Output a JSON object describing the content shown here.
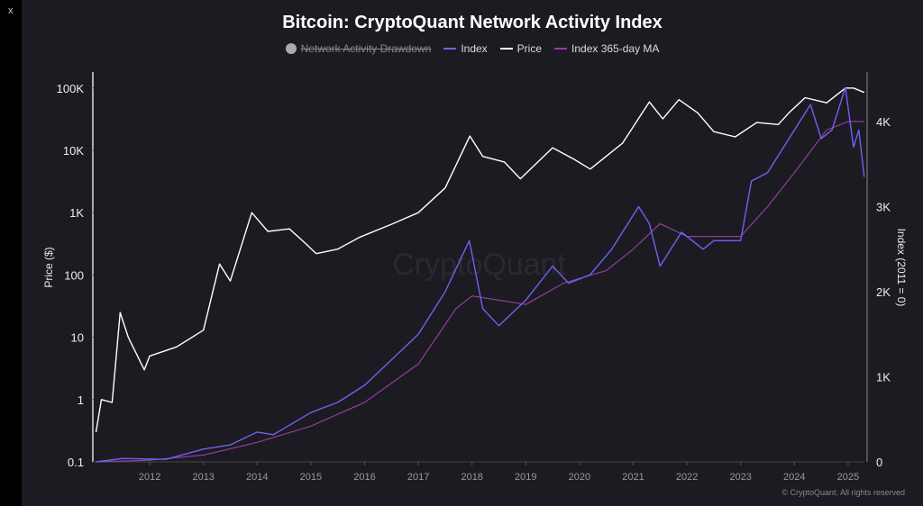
{
  "window": {
    "close_label": "x"
  },
  "footer": {
    "copyright": "© CryptoQuant. All rights reserved"
  },
  "chart_data": {
    "type": "line",
    "title": "Bitcoin: CryptoQuant Network Activity Index",
    "watermark": "CryptoQuant",
    "legend": [
      {
        "name": "Network Activity Drawdown",
        "color": "#aaaaaa",
        "hidden": true
      },
      {
        "name": "Index",
        "color": "#6c63f0"
      },
      {
        "name": "Price",
        "color": "#ffffff"
      },
      {
        "name": "Index 365-day MA",
        "color": "#8e3f9e"
      }
    ],
    "legend_placement": "top-center",
    "ylabel_left": "Price ($)",
    "ylabel_right": "Index (2011 = 0)",
    "x_ticks": [
      "2012",
      "2013",
      "2014",
      "2015",
      "2016",
      "2017",
      "2018",
      "2019",
      "2020",
      "2021",
      "2022",
      "2023",
      "2024",
      "2025"
    ],
    "x_range": [
      2011.0,
      2025.3
    ],
    "y_left_scale": "log",
    "y_left_ticks": [
      {
        "v": 0.1,
        "l": "0.1"
      },
      {
        "v": 1,
        "l": "1"
      },
      {
        "v": 10,
        "l": "10"
      },
      {
        "v": 100,
        "l": "100"
      },
      {
        "v": 1000,
        "l": "1K"
      },
      {
        "v": 10000,
        "l": "10K"
      },
      {
        "v": 100000,
        "l": "100K"
      }
    ],
    "y_right_ticks": [
      {
        "v": 0,
        "l": "0"
      },
      {
        "v": 1000,
        "l": "1K"
      },
      {
        "v": 2000,
        "l": "2K"
      },
      {
        "v": 3000,
        "l": "3K"
      },
      {
        "v": 4000,
        "l": "4K"
      }
    ],
    "series": [
      {
        "name": "Price",
        "axis": "left",
        "points": [
          [
            2011.0,
            0.3
          ],
          [
            2011.1,
            1
          ],
          [
            2011.3,
            0.9
          ],
          [
            2011.45,
            25
          ],
          [
            2011.6,
            10
          ],
          [
            2011.9,
            3
          ],
          [
            2012.0,
            5
          ],
          [
            2012.5,
            7
          ],
          [
            2013.0,
            13
          ],
          [
            2013.3,
            150
          ],
          [
            2013.5,
            80
          ],
          [
            2013.9,
            1000
          ],
          [
            2014.2,
            500
          ],
          [
            2014.6,
            550
          ],
          [
            2014.9,
            320
          ],
          [
            2015.1,
            220
          ],
          [
            2015.5,
            260
          ],
          [
            2015.9,
            400
          ],
          [
            2016.5,
            650
          ],
          [
            2017.0,
            1000
          ],
          [
            2017.5,
            2500
          ],
          [
            2017.96,
            17000
          ],
          [
            2018.2,
            8000
          ],
          [
            2018.6,
            6500
          ],
          [
            2018.9,
            3500
          ],
          [
            2019.5,
            11000
          ],
          [
            2019.9,
            7200
          ],
          [
            2020.2,
            5000
          ],
          [
            2020.8,
            13000
          ],
          [
            2021.3,
            60000
          ],
          [
            2021.55,
            32000
          ],
          [
            2021.85,
            65000
          ],
          [
            2022.2,
            40000
          ],
          [
            2022.5,
            20000
          ],
          [
            2022.9,
            16500
          ],
          [
            2023.3,
            28000
          ],
          [
            2023.7,
            26000
          ],
          [
            2023.9,
            40000
          ],
          [
            2024.2,
            70000
          ],
          [
            2024.6,
            58000
          ],
          [
            2024.95,
            100000
          ],
          [
            2025.1,
            100000
          ],
          [
            2025.3,
            85000
          ]
        ]
      },
      {
        "name": "Index",
        "axis": "right",
        "points": [
          [
            2011.0,
            0
          ],
          [
            2011.5,
            40
          ],
          [
            2012.3,
            30
          ],
          [
            2013.0,
            150
          ],
          [
            2013.5,
            200
          ],
          [
            2014.0,
            350
          ],
          [
            2014.3,
            320
          ],
          [
            2015.0,
            580
          ],
          [
            2015.5,
            700
          ],
          [
            2016.0,
            900
          ],
          [
            2016.5,
            1200
          ],
          [
            2017.0,
            1500
          ],
          [
            2017.5,
            2000
          ],
          [
            2017.95,
            2600
          ],
          [
            2018.2,
            1800
          ],
          [
            2018.5,
            1600
          ],
          [
            2019.0,
            1900
          ],
          [
            2019.5,
            2300
          ],
          [
            2019.8,
            2100
          ],
          [
            2020.2,
            2200
          ],
          [
            2020.6,
            2500
          ],
          [
            2021.1,
            3000
          ],
          [
            2021.3,
            2800
          ],
          [
            2021.5,
            2300
          ],
          [
            2021.9,
            2700
          ],
          [
            2022.3,
            2500
          ],
          [
            2022.5,
            2600
          ],
          [
            2023.0,
            2600
          ],
          [
            2023.2,
            3300
          ],
          [
            2023.5,
            3400
          ],
          [
            2023.8,
            3700
          ],
          [
            2024.3,
            4200
          ],
          [
            2024.5,
            3800
          ],
          [
            2024.7,
            3900
          ],
          [
            2024.95,
            4400
          ],
          [
            2025.1,
            3700
          ],
          [
            2025.2,
            3900
          ],
          [
            2025.3,
            3350
          ]
        ]
      },
      {
        "name": "Index 365-day MA",
        "axis": "right",
        "points": [
          [
            2011.0,
            0
          ],
          [
            2012.0,
            20
          ],
          [
            2013.0,
            80
          ],
          [
            2014.0,
            230
          ],
          [
            2015.0,
            420
          ],
          [
            2016.0,
            700
          ],
          [
            2017.0,
            1150
          ],
          [
            2017.7,
            1800
          ],
          [
            2018.0,
            1950
          ],
          [
            2018.5,
            1900
          ],
          [
            2019.0,
            1850
          ],
          [
            2019.7,
            2100
          ],
          [
            2020.5,
            2250
          ],
          [
            2021.0,
            2500
          ],
          [
            2021.5,
            2800
          ],
          [
            2022.0,
            2650
          ],
          [
            2023.0,
            2650
          ],
          [
            2023.5,
            3000
          ],
          [
            2024.0,
            3400
          ],
          [
            2024.6,
            3900
          ],
          [
            2025.0,
            4000
          ],
          [
            2025.3,
            4000
          ]
        ]
      }
    ]
  }
}
